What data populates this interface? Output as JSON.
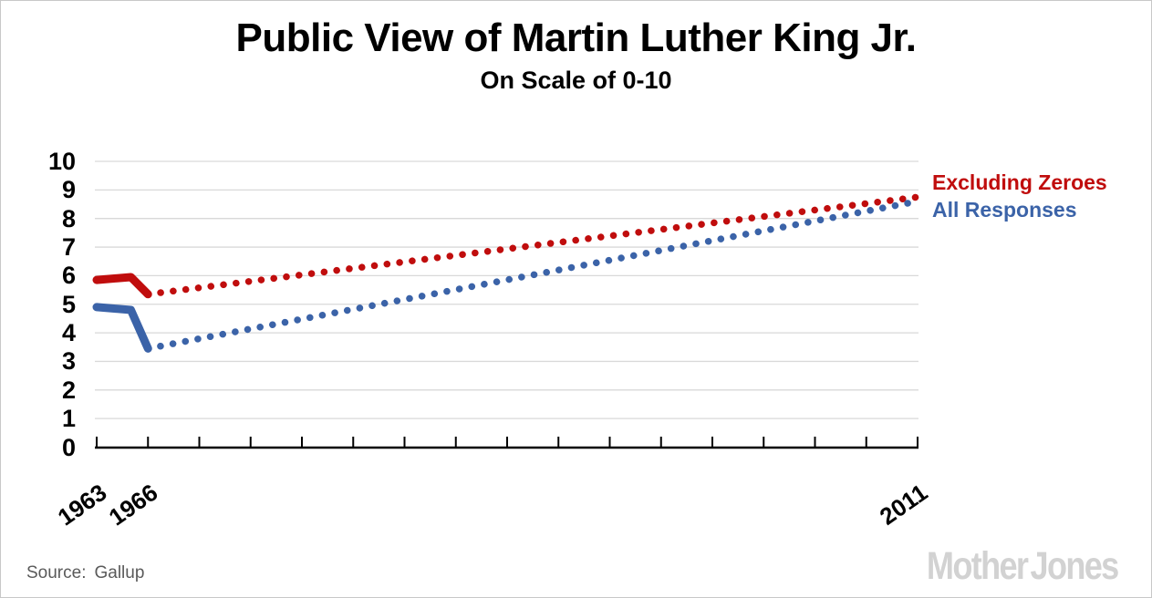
{
  "chart_data": {
    "type": "line",
    "title": "Public View of Martin Luther King Jr.",
    "subtitle": "On Scale of 0-10",
    "xlabel": "",
    "ylabel": "",
    "x_range": [
      1963,
      2011
    ],
    "x_tick_step": 3,
    "x_labeled_ticks": [
      "1963",
      "1966",
      "2011"
    ],
    "ylim": [
      0,
      10
    ],
    "y_ticks": [
      "0",
      "1",
      "2",
      "3",
      "4",
      "5",
      "6",
      "7",
      "8",
      "9",
      "10"
    ],
    "grid": "horizontal",
    "grid_color": "#d9d9d9",
    "axis_color": "#000000",
    "legend_position": "right",
    "series": [
      {
        "name": "Excluding Zeroes",
        "color": "#c00d0d",
        "style": "solid 1963-1966, dotted 1966-2011",
        "solid": {
          "x": [
            1963,
            1965,
            1966
          ],
          "y": [
            5.85,
            5.95,
            5.35
          ]
        },
        "dotted": {
          "x": [
            1966,
            2011
          ],
          "y": [
            5.35,
            8.75
          ]
        }
      },
      {
        "name": "All Responses",
        "color": "#3b63a8",
        "style": "solid 1963-1966, dotted 1966-2011",
        "solid": {
          "x": [
            1963,
            1965,
            1966
          ],
          "y": [
            4.9,
            4.8,
            3.45
          ]
        },
        "dotted": {
          "x": [
            1966,
            2011
          ],
          "y": [
            3.45,
            8.6
          ]
        }
      }
    ]
  },
  "source": {
    "label": "Source:",
    "value": "Gallup"
  },
  "branding": {
    "logo_text": "Mother Jones"
  }
}
